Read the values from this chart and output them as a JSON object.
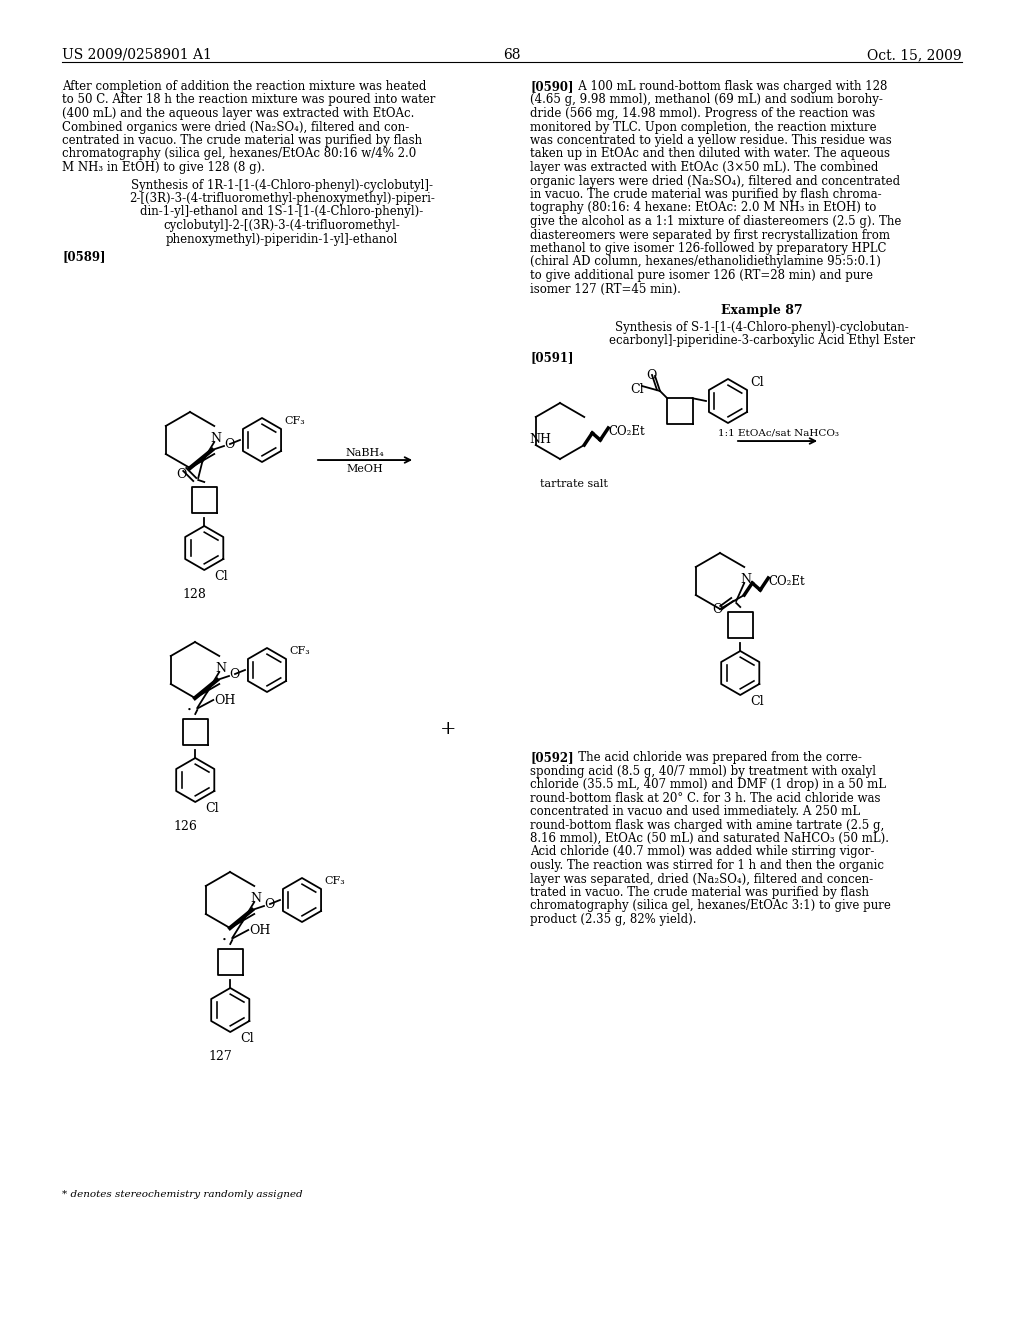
{
  "page_title_left": "US 2009/0258901 A1",
  "page_title_right": "Oct. 15, 2009",
  "page_number": "68",
  "background_color": "#ffffff"
}
